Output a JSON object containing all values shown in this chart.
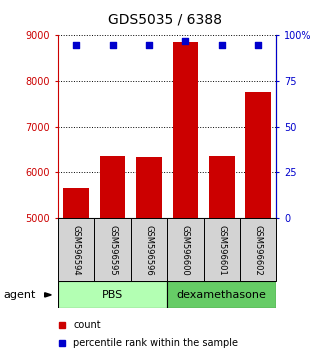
{
  "title": "GDS5035 / 6388",
  "samples": [
    "GSM596594",
    "GSM596595",
    "GSM596596",
    "GSM596600",
    "GSM596601",
    "GSM596602"
  ],
  "counts": [
    5650,
    6350,
    6330,
    8850,
    6350,
    7750
  ],
  "percentiles": [
    95,
    95,
    95,
    97,
    95,
    95
  ],
  "groups": [
    "PBS",
    "PBS",
    "PBS",
    "dexamethasone",
    "dexamethasone",
    "dexamethasone"
  ],
  "group_colors": {
    "PBS": "#b3ffb3",
    "dexamethasone": "#66cc66"
  },
  "bar_color": "#cc0000",
  "dot_color": "#0000cc",
  "ylim_left": [
    5000,
    9000
  ],
  "ylim_right": [
    0,
    100
  ],
  "left_yticks": [
    5000,
    6000,
    7000,
    8000,
    9000
  ],
  "right_yticks": [
    0,
    25,
    50,
    75,
    100
  ],
  "right_yticklabels": [
    "0",
    "25",
    "50",
    "75",
    "100%"
  ],
  "left_axis_color": "#cc0000",
  "right_axis_color": "#0000cc",
  "title_fontsize": 10,
  "bar_width": 0.7,
  "agent_label": "agent",
  "legend_count_label": "count",
  "legend_pct_label": "percentile rank within the sample",
  "pbs_color": "#b3ffb3",
  "dex_color": "#66cc66"
}
